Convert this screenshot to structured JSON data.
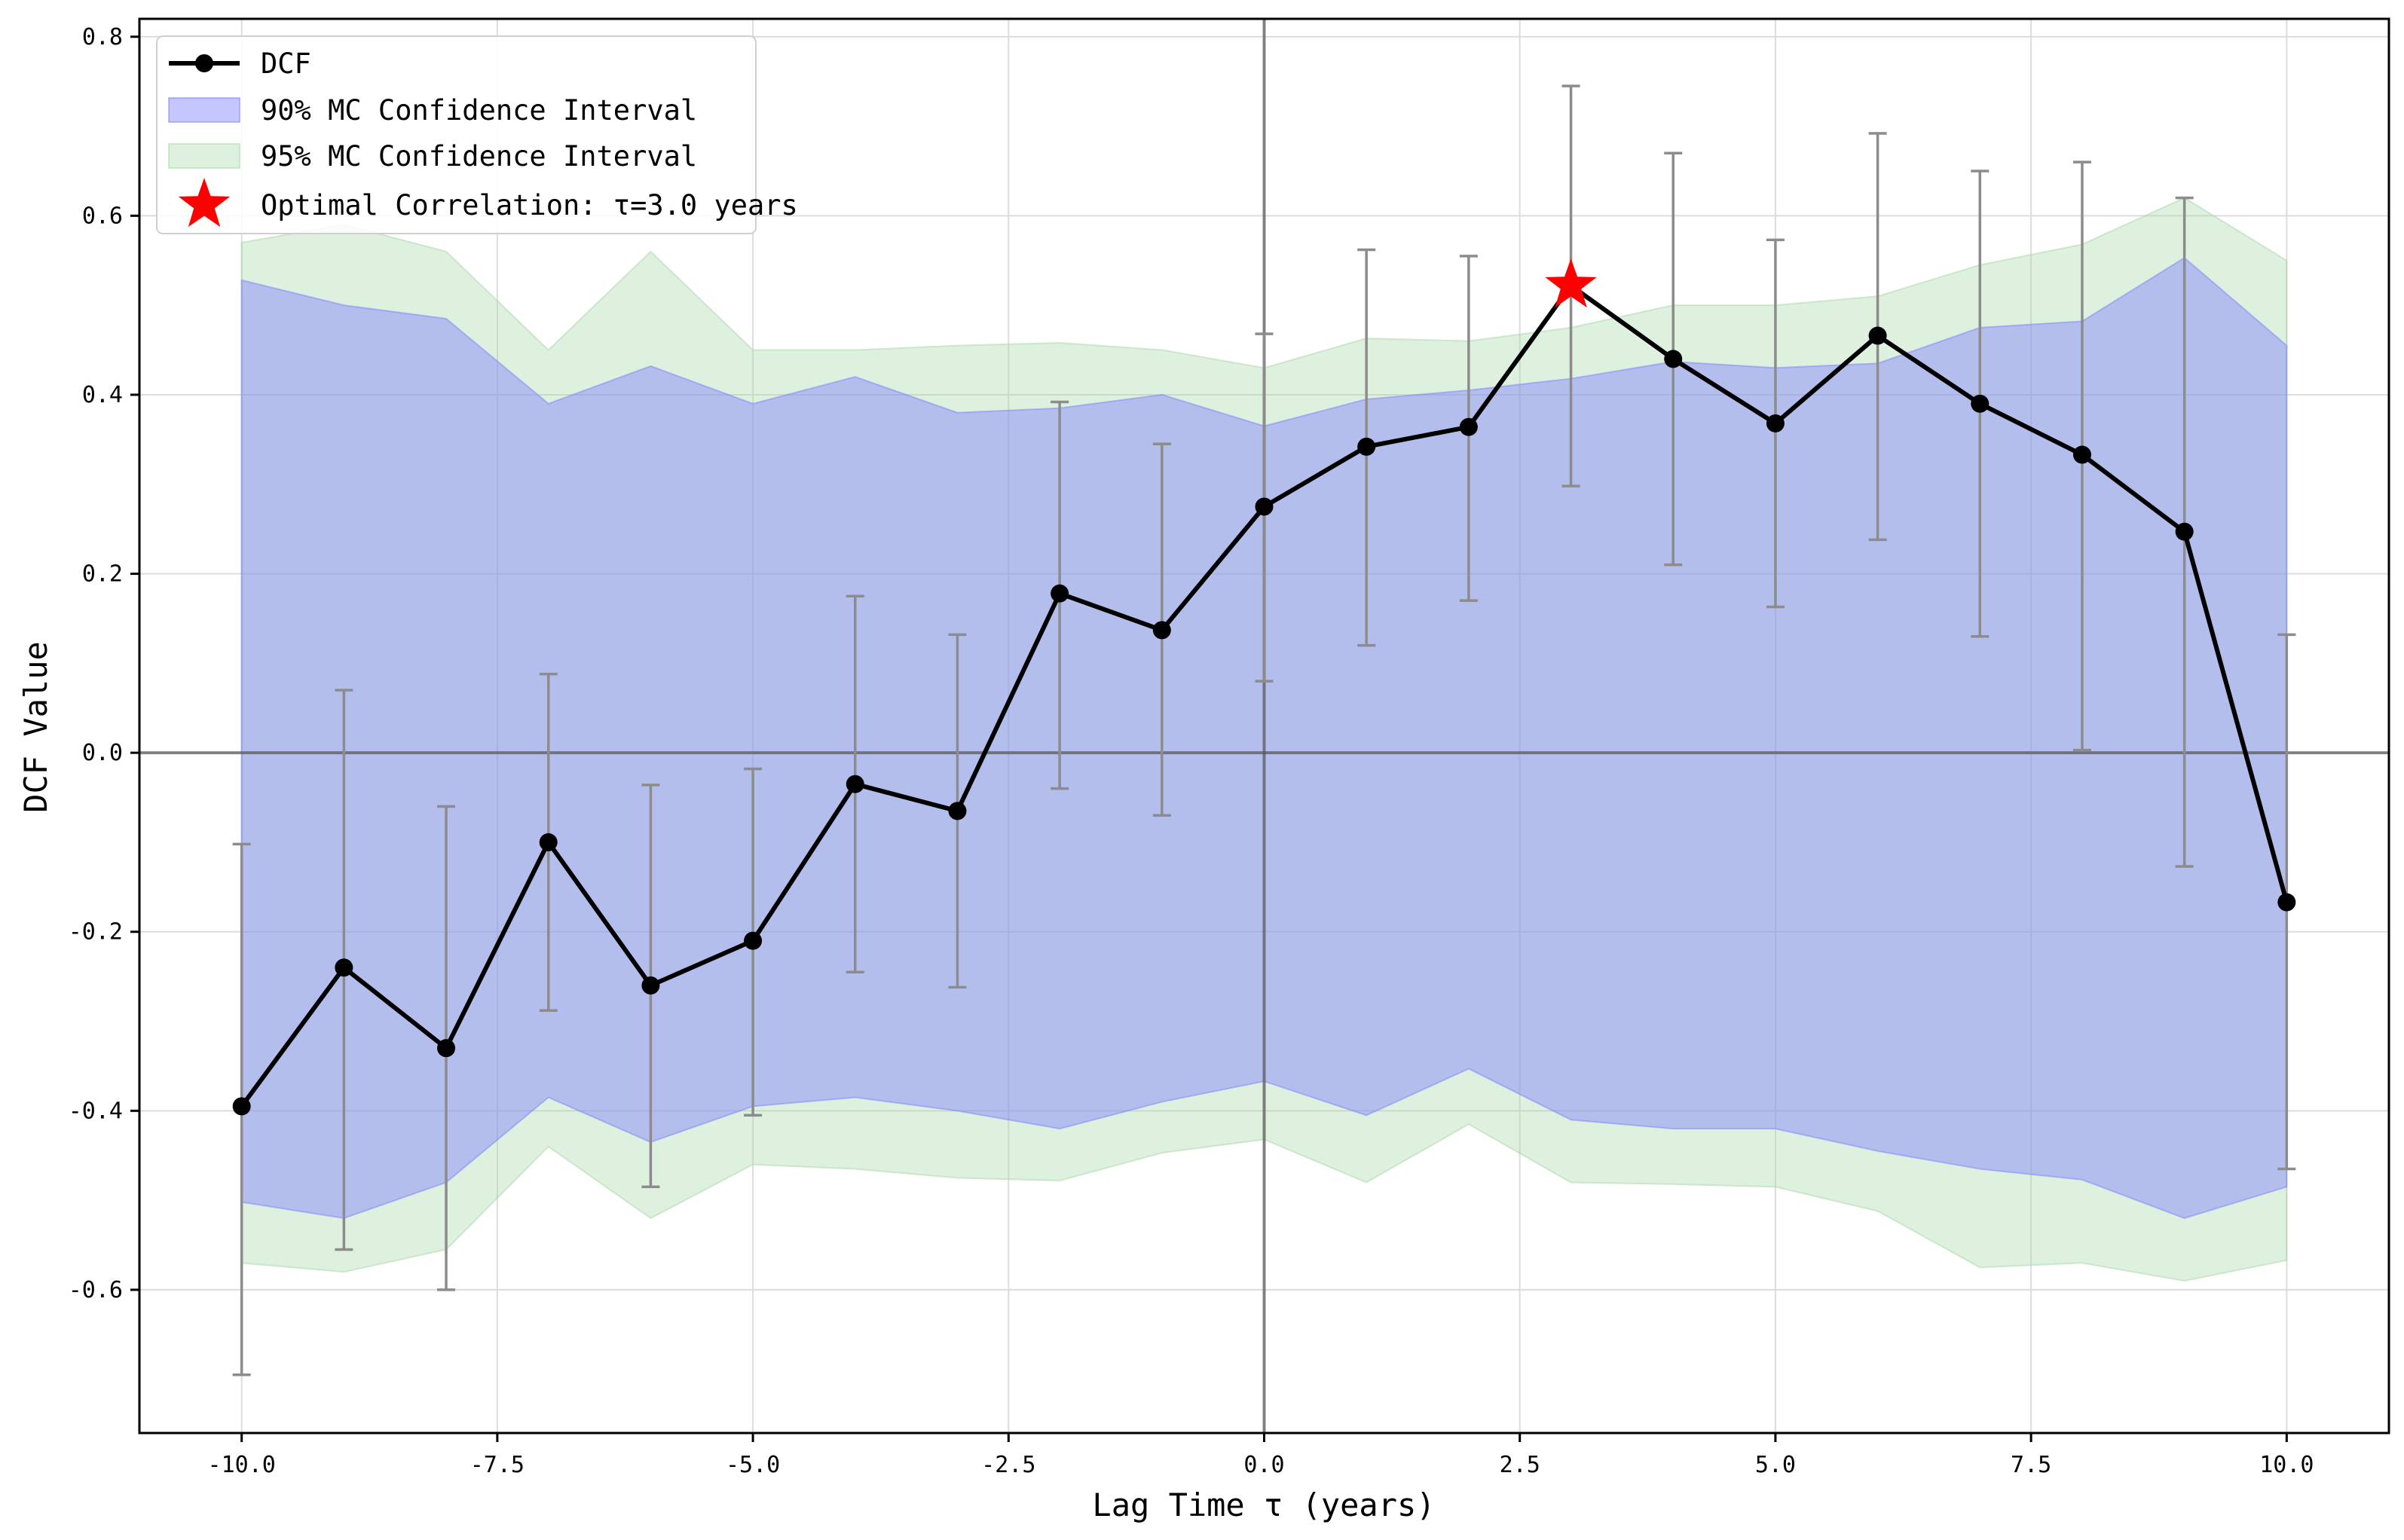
{
  "chart_data": {
    "type": "line",
    "xlabel": "Lag Time τ (years)",
    "ylabel": "DCF Value",
    "xlim": [
      -11,
      11
    ],
    "ylim": [
      -0.76,
      0.82
    ],
    "xticks": [
      -10.0,
      -7.5,
      -5.0,
      -2.5,
      0.0,
      2.5,
      5.0,
      7.5,
      10.0
    ],
    "xtick_labels": [
      "-10.0",
      "-7.5",
      "-5.0",
      "-2.5",
      "0.0",
      "2.5",
      "5.0",
      "7.5",
      "10.0"
    ],
    "yticks": [
      -0.6,
      -0.4,
      -0.2,
      0.0,
      0.2,
      0.4,
      0.6,
      0.8
    ],
    "ytick_labels": [
      "-0.6",
      "-0.4",
      "-0.2",
      "0.0",
      "0.2",
      "0.4",
      "0.6",
      "0.8"
    ],
    "grid": true,
    "legend_position": "top-left",
    "reference_lines": {
      "x": 0.0,
      "y": 0.0
    },
    "x": [
      -10,
      -9,
      -8,
      -7,
      -6,
      -5,
      -4,
      -3,
      -2,
      -1,
      0,
      1,
      2,
      3,
      4,
      5,
      6,
      7,
      8,
      9,
      10
    ],
    "series": [
      {
        "name": "DCF",
        "color": "#000000",
        "values": [
          -0.395,
          -0.24,
          -0.33,
          -0.1,
          -0.26,
          -0.21,
          -0.035,
          -0.065,
          0.178,
          0.137,
          0.275,
          0.342,
          0.364,
          0.522,
          0.44,
          0.368,
          0.466,
          0.39,
          0.333,
          0.247,
          -0.167
        ],
        "err_low": [
          -0.695,
          -0.555,
          -0.6,
          -0.288,
          -0.485,
          -0.405,
          -0.245,
          -0.262,
          -0.04,
          -0.07,
          0.08,
          0.12,
          0.17,
          0.298,
          0.21,
          0.163,
          0.238,
          0.13,
          0.003,
          -0.127,
          -0.465
        ],
        "err_high": [
          -0.102,
          0.07,
          -0.06,
          0.088,
          -0.036,
          -0.018,
          0.175,
          0.132,
          0.392,
          0.345,
          0.468,
          0.562,
          0.555,
          0.745,
          0.67,
          0.573,
          0.692,
          0.65,
          0.66,
          0.62,
          0.132
        ]
      }
    ],
    "bands": [
      {
        "name": "95% MC Confidence Interval",
        "color": "#a8d8a8",
        "upper": [
          0.57,
          0.59,
          0.56,
          0.45,
          0.56,
          0.45,
          0.45,
          0.455,
          0.458,
          0.45,
          0.43,
          0.463,
          0.46,
          0.475,
          0.5,
          0.5,
          0.51,
          0.545,
          0.568,
          0.62,
          0.55
        ],
        "lower": [
          -0.57,
          -0.58,
          -0.555,
          -0.44,
          -0.52,
          -0.46,
          -0.465,
          -0.475,
          -0.478,
          -0.447,
          -0.432,
          -0.48,
          -0.415,
          -0.48,
          -0.482,
          -0.485,
          -0.512,
          -0.575,
          -0.57,
          -0.59,
          -0.567
        ]
      },
      {
        "name": "90% MC Confidence Interval",
        "color": "#8080ff",
        "upper": [
          0.528,
          0.5,
          0.485,
          0.39,
          0.432,
          0.39,
          0.42,
          0.38,
          0.385,
          0.4,
          0.365,
          0.395,
          0.405,
          0.418,
          0.437,
          0.43,
          0.435,
          0.475,
          0.482,
          0.553,
          0.455
        ],
        "lower": [
          -0.502,
          -0.52,
          -0.48,
          -0.385,
          -0.435,
          -0.395,
          -0.385,
          -0.4,
          -0.42,
          -0.39,
          -0.367,
          -0.405,
          -0.353,
          -0.41,
          -0.42,
          -0.42,
          -0.445,
          -0.465,
          -0.477,
          -0.52,
          -0.485
        ]
      }
    ],
    "optimal_point": {
      "x": 3.0,
      "y": 0.522,
      "color": "#ff0000",
      "legend_label": "Optimal Correlation: τ=3.0 years"
    },
    "legend": [
      {
        "label": "DCF",
        "symbol": "line-marker",
        "color": "#000000"
      },
      {
        "label": "90% MC Confidence Interval",
        "symbol": "patch",
        "color": "#8080ff"
      },
      {
        "label": "95% MC Confidence Interval",
        "symbol": "patch",
        "color": "#a8d8a8"
      },
      {
        "label": "Optimal Correlation: τ=3.0 years",
        "symbol": "star",
        "color": "#ff0000"
      }
    ]
  }
}
